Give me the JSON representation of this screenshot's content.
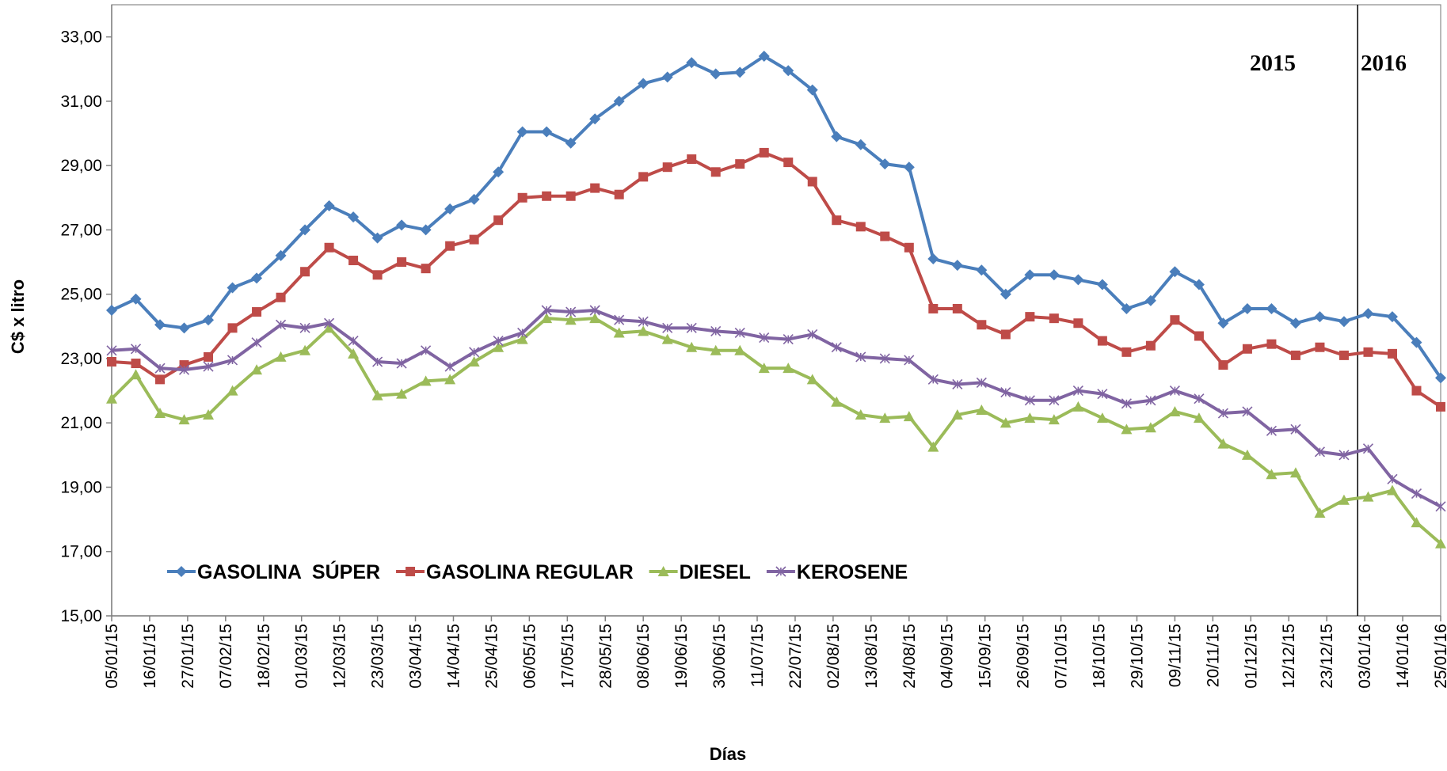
{
  "chart_data": {
    "type": "line",
    "x_label": "Días",
    "y_label": "C$ x litro",
    "annotations": [
      "2015",
      "2016"
    ],
    "x": [
      "05/01/15",
      "12/01/15",
      "19/01/15",
      "26/01/15",
      "02/02/15",
      "09/02/15",
      "16/02/15",
      "23/02/15",
      "02/03/15",
      "09/03/15",
      "16/03/15",
      "23/03/15",
      "30/03/15",
      "06/04/15",
      "13/04/15",
      "20/04/15",
      "27/04/15",
      "04/05/15",
      "11/05/15",
      "18/05/15",
      "25/05/15",
      "01/06/15",
      "08/06/15",
      "15/06/15",
      "22/06/15",
      "29/06/15",
      "06/07/15",
      "13/07/15",
      "20/07/15",
      "27/07/15",
      "03/08/15",
      "10/08/15",
      "17/08/15",
      "24/08/15",
      "31/08/15",
      "07/09/15",
      "14/09/15",
      "21/09/15",
      "28/09/15",
      "05/10/15",
      "12/10/15",
      "19/10/15",
      "26/10/15",
      "02/11/15",
      "09/11/15",
      "16/11/15",
      "23/11/15",
      "30/11/15",
      "07/12/15",
      "14/12/15",
      "21/12/15",
      "28/12/15",
      "04/01/16",
      "11/01/16",
      "18/01/16",
      "25/01/16"
    ],
    "xlim": [
      "05/01/15",
      "25/01/16"
    ],
    "xticks": [
      "05/01/15",
      "16/01/15",
      "27/01/15",
      "07/02/15",
      "18/02/15",
      "01/03/15",
      "12/03/15",
      "23/03/15",
      "03/04/15",
      "14/04/15",
      "25/04/15",
      "06/05/15",
      "17/05/15",
      "28/05/15",
      "08/06/15",
      "19/06/15",
      "30/06/15",
      "11/07/15",
      "22/07/15",
      "02/08/15",
      "13/08/15",
      "24/08/15",
      "04/09/15",
      "15/09/15",
      "26/09/15",
      "07/10/15",
      "18/10/15",
      "29/10/15",
      "09/11/15",
      "20/11/15",
      "01/12/15",
      "12/12/15",
      "23/12/15",
      "03/01/16",
      "14/01/16",
      "25/01/16"
    ],
    "ylim": [
      15,
      34
    ],
    "yticks": [
      {
        "value": 15,
        "label": "15,00"
      },
      {
        "value": 17,
        "label": "17,00"
      },
      {
        "value": 19,
        "label": "19,00"
      },
      {
        "value": 21,
        "label": "21,00"
      },
      {
        "value": 23,
        "label": "23,00"
      },
      {
        "value": 25,
        "label": "25,00"
      },
      {
        "value": 27,
        "label": "27,00"
      },
      {
        "value": 29,
        "label": "29,00"
      },
      {
        "value": 31,
        "label": "31,00"
      },
      {
        "value": 33,
        "label": "33,00"
      }
    ],
    "grid": false,
    "legend": "lower left",
    "series": [
      {
        "name": "GASOLINA  SÚPER",
        "color": "#4a7ebb",
        "marker": "diamond",
        "values": [
          24.5,
          24.85,
          24.05,
          23.95,
          24.2,
          25.2,
          25.5,
          26.2,
          27.0,
          27.75,
          27.4,
          26.75,
          27.15,
          27.0,
          27.65,
          27.95,
          28.8,
          30.05,
          30.05,
          29.7,
          30.45,
          31.0,
          31.55,
          31.75,
          32.2,
          31.85,
          31.9,
          32.4,
          31.95,
          31.35,
          29.9,
          29.65,
          29.05,
          28.95,
          26.1,
          25.9,
          25.75,
          25.0,
          25.6,
          25.6,
          25.45,
          25.3,
          24.55,
          24.8,
          25.7,
          25.3,
          24.1,
          24.55,
          24.55,
          24.1,
          24.3,
          24.15,
          24.4,
          24.3,
          23.5,
          22.4
        ]
      },
      {
        "name": "GASOLINA REGULAR",
        "color": "#be4b48",
        "marker": "square",
        "values": [
          22.9,
          22.85,
          22.35,
          22.8,
          23.05,
          23.95,
          24.45,
          24.9,
          25.7,
          26.45,
          26.05,
          25.6,
          26.0,
          25.8,
          26.5,
          26.7,
          27.3,
          28.0,
          28.05,
          28.05,
          28.3,
          28.1,
          28.65,
          28.95,
          29.2,
          28.8,
          29.05,
          29.4,
          29.1,
          28.5,
          27.3,
          27.1,
          26.8,
          26.45,
          24.55,
          24.55,
          24.05,
          23.75,
          24.3,
          24.25,
          24.1,
          23.55,
          23.2,
          23.4,
          24.2,
          23.7,
          22.8,
          23.3,
          23.45,
          23.1,
          23.35,
          23.1,
          23.2,
          23.15,
          22.0,
          21.5
        ]
      },
      {
        "name": "DIESEL",
        "color": "#9bbb59",
        "marker": "triangle",
        "values": [
          21.75,
          22.5,
          21.3,
          21.1,
          21.25,
          22.0,
          22.65,
          23.05,
          23.25,
          23.95,
          23.15,
          21.85,
          21.9,
          22.3,
          22.35,
          22.9,
          23.35,
          23.6,
          24.25,
          24.2,
          24.25,
          23.8,
          23.85,
          23.6,
          23.35,
          23.25,
          23.25,
          22.7,
          22.7,
          22.35,
          21.65,
          21.25,
          21.15,
          21.2,
          20.25,
          21.25,
          21.4,
          21.0,
          21.15,
          21.1,
          21.5,
          21.15,
          20.8,
          20.85,
          21.35,
          21.15,
          20.35,
          20.0,
          19.4,
          19.45,
          18.2,
          18.6,
          18.7,
          18.9,
          17.9,
          17.25
        ]
      },
      {
        "name": "KEROSENE",
        "color": "#8064a2",
        "marker": "x",
        "values": [
          23.25,
          23.3,
          22.7,
          22.65,
          22.75,
          22.95,
          23.5,
          24.05,
          23.95,
          24.1,
          23.55,
          22.9,
          22.85,
          23.25,
          22.75,
          23.2,
          23.55,
          23.8,
          24.5,
          24.45,
          24.5,
          24.2,
          24.15,
          23.95,
          23.95,
          23.85,
          23.8,
          23.65,
          23.6,
          23.75,
          23.35,
          23.05,
          23.0,
          22.95,
          22.35,
          22.2,
          22.25,
          21.95,
          21.7,
          21.7,
          22.0,
          21.9,
          21.6,
          21.7,
          22.0,
          21.75,
          21.3,
          21.35,
          20.75,
          20.8,
          20.1,
          20.0,
          20.2,
          19.25,
          18.8,
          18.4
        ]
      }
    ]
  }
}
